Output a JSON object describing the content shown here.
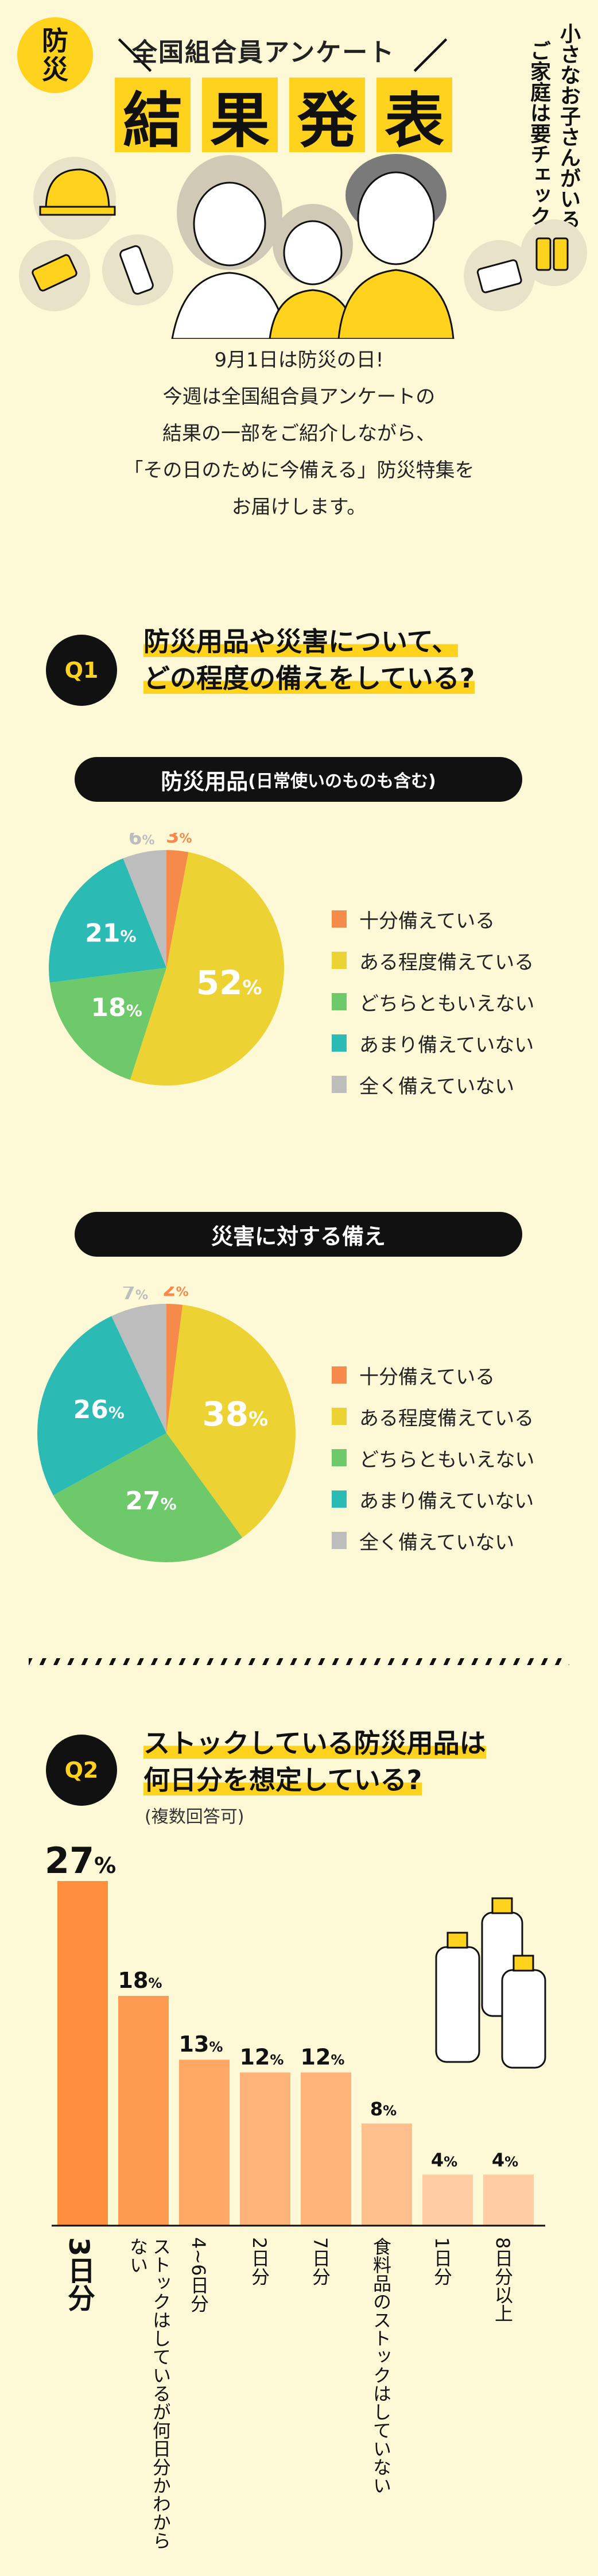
{
  "header": {
    "badge_line1": "防",
    "badge_line2": "災",
    "subtitle": "全国組合員アンケート",
    "title_chars": [
      "結",
      "果",
      "発",
      "表"
    ],
    "vertical_line1": "小さなお子さんがいる",
    "vertical_line2": "ご家庭は要チェック!"
  },
  "intro": {
    "lines": [
      "9月1日は防災の日!",
      "今週は全国組合員アンケートの",
      "結果の一部をご紹介しながら、",
      "「その日のために今備える」防災特集を",
      "お届けします。"
    ]
  },
  "q1": {
    "badge": "Q1",
    "question_line1": "防災用品や災害について、",
    "question_line2": "どの程度の備えをしている?"
  },
  "q2": {
    "badge": "Q2",
    "question_line1": "ストックしている防災用品は",
    "question_line2": "何日分を想定している?",
    "note": "(複数回答可)"
  },
  "colors": {
    "orange": "#f58a4a",
    "yellow": "#ecd232",
    "green": "#6dc96a",
    "teal": "#2cbab4",
    "gray": "#bdbdbd",
    "accent": "#ffd21e",
    "bar_orange": "#ff8f3e"
  },
  "chart_data": [
    {
      "type": "pie",
      "title": "防災用品",
      "title_note": "(日常使いのものも含む)",
      "categories": [
        "十分備えている",
        "ある程度備えている",
        "どちらともいえない",
        "あまり備えていない",
        "全く備えていない"
      ],
      "values": [
        3,
        52,
        18,
        21,
        6
      ],
      "unit": "%",
      "legend": "right"
    },
    {
      "type": "pie",
      "title": "災害に対する備え",
      "categories": [
        "十分備えている",
        "ある程度備えている",
        "どちらともいえない",
        "あまり備えていない",
        "全く備えていない"
      ],
      "values": [
        2,
        38,
        27,
        26,
        7
      ],
      "unit": "%",
      "legend": "right"
    },
    {
      "type": "bar",
      "categories": [
        "3日分",
        "ストックはしているが何日分かわからない",
        "4~6日分",
        "2日分",
        "7日分",
        "食料品のストックはしていない",
        "1日分",
        "8日分以上"
      ],
      "values": [
        27,
        18,
        13,
        12,
        12,
        8,
        4,
        4
      ],
      "unit": "%",
      "ylim": [
        0,
        27
      ]
    }
  ]
}
